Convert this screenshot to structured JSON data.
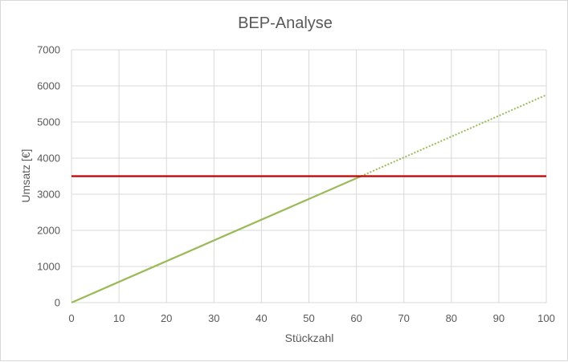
{
  "chart_data": {
    "type": "line",
    "title": "BEP-Analyse",
    "xlabel": "Stückzahl",
    "ylabel": "Umsatz [€]",
    "xlim": [
      0,
      100
    ],
    "ylim": [
      0,
      7000
    ],
    "xticks": [
      "0",
      "10",
      "20",
      "30",
      "40",
      "50",
      "60",
      "70",
      "80",
      "90",
      "100"
    ],
    "yticks": [
      "0",
      "1000",
      "2000",
      "3000",
      "4000",
      "5000",
      "6000",
      "7000"
    ],
    "grid": true,
    "legend": "none",
    "series": [
      {
        "color": "#9bbb59",
        "style": "solid",
        "x": [
          0,
          61
        ],
        "y": [
          0,
          3500
        ]
      },
      {
        "color": "#9bbb59",
        "style": "dotted",
        "x": [
          61,
          100
        ],
        "y": [
          3500,
          5750
        ]
      },
      {
        "color": "#c00000",
        "style": "solid",
        "x": [
          0,
          100
        ],
        "y": [
          3500,
          3500
        ]
      }
    ]
  }
}
